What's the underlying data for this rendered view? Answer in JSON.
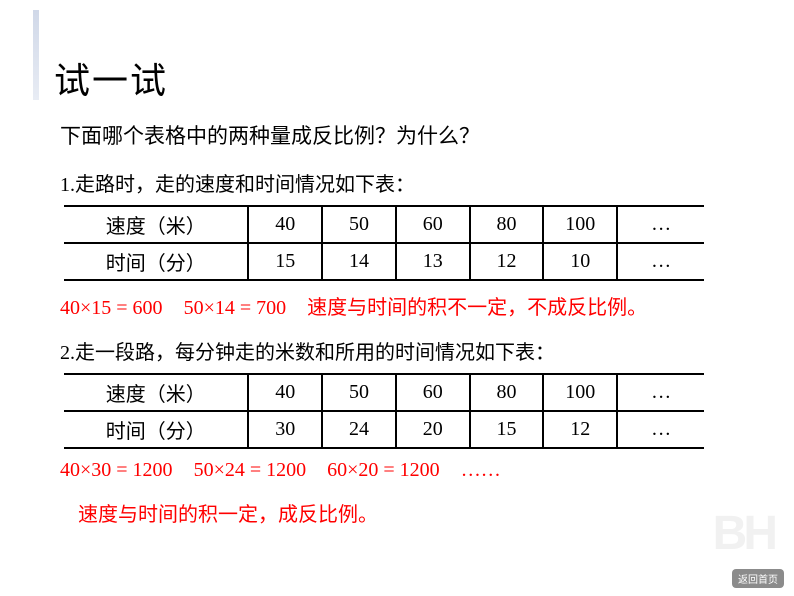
{
  "title": "试一试",
  "question": "下面哪个表格中的两种量成反比例？为什么？",
  "block1": {
    "prompt": "1.走路时，走的速度和时间情况如下表：",
    "row1_label": "速度（米）",
    "row2_label": "时间（分）",
    "cols": [
      "40",
      "50",
      "60",
      "80",
      "100",
      "…"
    ],
    "row2": [
      "15",
      "14",
      "13",
      "12",
      "10",
      "…"
    ],
    "calc_a": "40×15 = 600",
    "calc_b": "50×14 = 700",
    "calc_txt": "速度与时间的积不一定，不成反比例。"
  },
  "block2": {
    "prompt": "2.走一段路，每分钟走的米数和所用的时间情况如下表：",
    "row1_label": "速度（米）",
    "row2_label": "时间（分）",
    "cols": [
      "40",
      "50",
      "60",
      "80",
      "100",
      "…"
    ],
    "row2": [
      "30",
      "24",
      "20",
      "15",
      "12",
      "…"
    ],
    "calc_a": "40×30 = 1200",
    "calc_b": "50×24 = 1200",
    "calc_c": "60×20 = 1200",
    "calc_d": "……"
  },
  "conclusion": "速度与时间的积一定，成反比例。",
  "badge": "返回首页",
  "watermark": "BH",
  "colors": {
    "accent": "#ff0000",
    "text": "#000000",
    "bar": "#d0d8e8"
  }
}
